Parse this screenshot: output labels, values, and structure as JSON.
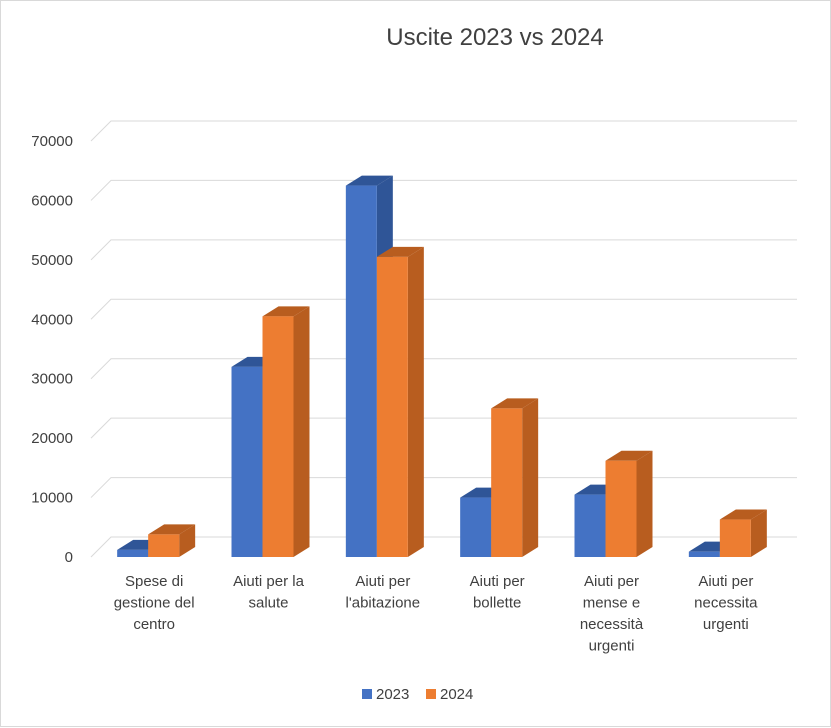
{
  "chart_data": {
    "type": "bar",
    "title": "Uscite 2023 vs 2024",
    "categories": [
      [
        "Spese di",
        "gestione del",
        "centro"
      ],
      [
        "Aiuti per la",
        "salute"
      ],
      [
        "Aiuti per",
        "l'abitazione"
      ],
      [
        "Aiuti per",
        "bollette"
      ],
      [
        "Aiuti per",
        "mense e",
        "necessità",
        "urgenti"
      ],
      [
        "Aiuti per",
        "necessita",
        "urgenti"
      ]
    ],
    "series": [
      {
        "name": "2023",
        "color": "#4472c4",
        "side": "#2f5597",
        "values": [
          1200,
          32000,
          62500,
          10000,
          10500,
          900
        ]
      },
      {
        "name": "2024",
        "color": "#ed7d31",
        "side": "#b85d1f",
        "values": [
          3800,
          40500,
          50500,
          25000,
          16200,
          6300
        ]
      }
    ],
    "y_ticks": [
      "0",
      "10000",
      "20000",
      "30000",
      "40000",
      "50000",
      "60000",
      "70000"
    ],
    "ylim": [
      0,
      70000
    ],
    "grid": true,
    "legend_position": "bottom"
  }
}
